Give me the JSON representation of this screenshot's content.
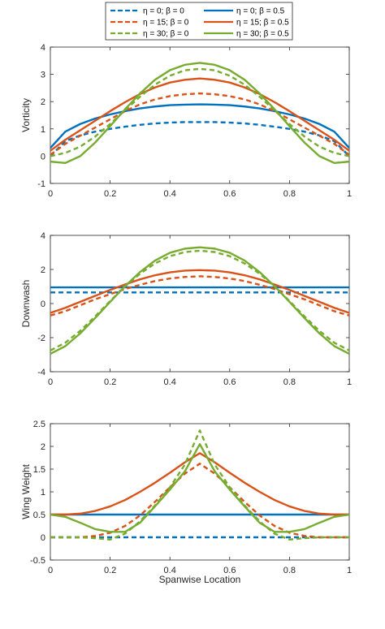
{
  "legend": {
    "entries": [
      {
        "label": "η = 0; β = 0",
        "color": "#0072BD",
        "dash": true
      },
      {
        "label": "η = 0; β = 0.5",
        "color": "#0072BD",
        "dash": false
      },
      {
        "label": "η = 15; β = 0",
        "color": "#D95319",
        "dash": true
      },
      {
        "label": "η = 15; β = 0.5",
        "color": "#D95319",
        "dash": false
      },
      {
        "label": "η = 30; β = 0",
        "color": "#77AC30",
        "dash": true
      },
      {
        "label": "η = 30; β = 0.5",
        "color": "#77AC30",
        "dash": false
      }
    ]
  },
  "chart_data": [
    {
      "type": "line",
      "title": "",
      "xlabel": "",
      "ylabel": "Vorticity",
      "xlim": [
        0,
        1
      ],
      "ylim": [
        -1,
        4
      ],
      "xticks": [
        "0",
        "0.2",
        "0.4",
        "0.6",
        "0.8",
        "1"
      ],
      "yticks": [
        "-1",
        "0",
        "1",
        "2",
        "3",
        "4"
      ],
      "x": [
        0,
        0.05,
        0.1,
        0.15,
        0.2,
        0.25,
        0.3,
        0.35,
        0.4,
        0.45,
        0.5,
        0.55,
        0.6,
        0.65,
        0.7,
        0.75,
        0.8,
        0.85,
        0.9,
        0.95,
        1
      ],
      "series": [
        {
          "name": "η = 0; β = 0",
          "color": "#0072BD",
          "dash": true,
          "values": [
            0.0,
            0.55,
            0.76,
            0.9,
            1.0,
            1.08,
            1.15,
            1.2,
            1.23,
            1.25,
            1.25,
            1.25,
            1.23,
            1.2,
            1.15,
            1.08,
            1.0,
            0.9,
            0.76,
            0.55,
            0.0
          ]
        },
        {
          "name": "η = 0; β = 0.5",
          "color": "#0072BD",
          "dash": false,
          "values": [
            0.3,
            0.9,
            1.18,
            1.38,
            1.53,
            1.65,
            1.75,
            1.82,
            1.87,
            1.89,
            1.9,
            1.89,
            1.87,
            1.82,
            1.75,
            1.65,
            1.53,
            1.38,
            1.18,
            0.9,
            0.3
          ]
        },
        {
          "name": "η = 15; β = 0",
          "color": "#D95319",
          "dash": true,
          "values": [
            0.05,
            0.45,
            0.75,
            1.05,
            1.35,
            1.65,
            1.9,
            2.08,
            2.2,
            2.27,
            2.3,
            2.27,
            2.2,
            2.08,
            1.9,
            1.65,
            1.35,
            1.05,
            0.75,
            0.45,
            0.05
          ]
        },
        {
          "name": "η = 15; β = 0.5",
          "color": "#D95319",
          "dash": false,
          "values": [
            0.2,
            0.6,
            0.95,
            1.3,
            1.65,
            1.98,
            2.28,
            2.52,
            2.7,
            2.8,
            2.85,
            2.8,
            2.7,
            2.52,
            2.28,
            1.98,
            1.65,
            1.3,
            0.95,
            0.6,
            0.2
          ]
        },
        {
          "name": "η = 30; β = 0",
          "color": "#77AC30",
          "dash": true,
          "values": [
            0.0,
            0.12,
            0.35,
            0.72,
            1.18,
            1.68,
            2.18,
            2.62,
            2.95,
            3.15,
            3.2,
            3.15,
            2.95,
            2.62,
            2.18,
            1.68,
            1.18,
            0.72,
            0.35,
            0.12,
            0.0
          ]
        },
        {
          "name": "η = 30; β = 0.5",
          "color": "#77AC30",
          "dash": false,
          "values": [
            -0.2,
            -0.25,
            0.0,
            0.5,
            1.1,
            1.72,
            2.3,
            2.8,
            3.15,
            3.35,
            3.42,
            3.35,
            3.15,
            2.8,
            2.3,
            1.72,
            1.1,
            0.5,
            0.0,
            -0.25,
            -0.2
          ]
        }
      ]
    },
    {
      "type": "line",
      "title": "",
      "xlabel": "",
      "ylabel": "Downwash",
      "xlim": [
        0,
        1
      ],
      "ylim": [
        -4,
        4
      ],
      "xticks": [
        "0",
        "0.2",
        "0.4",
        "0.6",
        "0.8",
        "1"
      ],
      "yticks": [
        "-4",
        "-2",
        "0",
        "2",
        "4"
      ],
      "x": [
        0,
        0.05,
        0.1,
        0.15,
        0.2,
        0.25,
        0.3,
        0.35,
        0.4,
        0.45,
        0.5,
        0.55,
        0.6,
        0.65,
        0.7,
        0.75,
        0.8,
        0.85,
        0.9,
        0.95,
        1
      ],
      "series": [
        {
          "name": "η = 0; β = 0",
          "color": "#0072BD",
          "dash": true,
          "values": [
            0.65,
            0.65,
            0.65,
            0.65,
            0.65,
            0.65,
            0.65,
            0.65,
            0.65,
            0.65,
            0.65,
            0.65,
            0.65,
            0.65,
            0.65,
            0.65,
            0.65,
            0.65,
            0.65,
            0.65,
            0.65
          ]
        },
        {
          "name": "η = 0; β = 0.5",
          "color": "#0072BD",
          "dash": false,
          "values": [
            0.95,
            0.95,
            0.95,
            0.95,
            0.95,
            0.95,
            0.95,
            0.95,
            0.95,
            0.95,
            0.95,
            0.95,
            0.95,
            0.95,
            0.95,
            0.95,
            0.95,
            0.95,
            0.95,
            0.95,
            0.95
          ]
        },
        {
          "name": "η = 15; β = 0",
          "color": "#D95319",
          "dash": true,
          "values": [
            -0.7,
            -0.45,
            -0.1,
            0.25,
            0.55,
            0.85,
            1.1,
            1.32,
            1.47,
            1.56,
            1.6,
            1.56,
            1.47,
            1.32,
            1.1,
            0.85,
            0.55,
            0.25,
            -0.1,
            -0.45,
            -0.7
          ]
        },
        {
          "name": "η = 15; β = 0.5",
          "color": "#D95319",
          "dash": false,
          "values": [
            -0.55,
            -0.25,
            0.1,
            0.45,
            0.8,
            1.12,
            1.42,
            1.66,
            1.83,
            1.93,
            1.96,
            1.93,
            1.83,
            1.66,
            1.42,
            1.12,
            0.8,
            0.45,
            0.1,
            -0.25,
            -0.55
          ]
        },
        {
          "name": "η = 30; β = 0",
          "color": "#77AC30",
          "dash": true,
          "values": [
            -2.75,
            -2.3,
            -1.6,
            -0.75,
            0.15,
            1.0,
            1.75,
            2.35,
            2.78,
            3.02,
            3.1,
            3.02,
            2.78,
            2.35,
            1.75,
            1.0,
            0.15,
            -0.75,
            -1.6,
            -2.3,
            -2.75
          ]
        },
        {
          "name": "η = 30; β = 0.5",
          "color": "#77AC30",
          "dash": false,
          "values": [
            -2.95,
            -2.5,
            -1.75,
            -0.85,
            0.1,
            1.02,
            1.85,
            2.52,
            2.98,
            3.22,
            3.3,
            3.22,
            2.98,
            2.52,
            1.85,
            1.02,
            0.1,
            -0.85,
            -1.75,
            -2.5,
            -2.95
          ]
        }
      ]
    },
    {
      "type": "line",
      "title": "",
      "xlabel": "Spanwise Location",
      "ylabel": "Wing Weight",
      "xlim": [
        0,
        1
      ],
      "ylim": [
        -0.5,
        2.5
      ],
      "xticks": [
        "0",
        "0.2",
        "0.4",
        "0.6",
        "0.8",
        "1"
      ],
      "yticks": [
        "-0.5",
        "0",
        "0.5",
        "1",
        "1.5",
        "2",
        "2.5"
      ],
      "x": [
        0,
        0.05,
        0.1,
        0.15,
        0.2,
        0.25,
        0.3,
        0.35,
        0.4,
        0.45,
        0.5,
        0.55,
        0.6,
        0.65,
        0.7,
        0.75,
        0.8,
        0.85,
        0.9,
        0.95,
        1
      ],
      "series": [
        {
          "name": "η = 0; β = 0",
          "color": "#0072BD",
          "dash": true,
          "values": [
            0,
            0,
            0,
            0,
            0,
            0,
            0,
            0,
            0,
            0,
            0,
            0,
            0,
            0,
            0,
            0,
            0,
            0,
            0,
            0,
            0
          ]
        },
        {
          "name": "η = 0; β = 0.5",
          "color": "#0072BD",
          "dash": false,
          "values": [
            0.5,
            0.5,
            0.5,
            0.5,
            0.5,
            0.5,
            0.5,
            0.5,
            0.5,
            0.5,
            0.5,
            0.5,
            0.5,
            0.5,
            0.5,
            0.5,
            0.5,
            0.5,
            0.5,
            0.5,
            0.5
          ]
        },
        {
          "name": "η = 15; β = 0",
          "color": "#D95319",
          "dash": true,
          "values": [
            0.0,
            0.0,
            0.0,
            0.03,
            0.1,
            0.25,
            0.48,
            0.78,
            1.1,
            1.4,
            1.62,
            1.4,
            1.1,
            0.78,
            0.48,
            0.25,
            0.1,
            0.03,
            0.0,
            0.0,
            0.0
          ]
        },
        {
          "name": "η = 15; β = 0.5",
          "color": "#D95319",
          "dash": false,
          "values": [
            0.5,
            0.5,
            0.52,
            0.58,
            0.68,
            0.82,
            1.0,
            1.2,
            1.42,
            1.65,
            1.85,
            1.65,
            1.42,
            1.2,
            1.0,
            0.82,
            0.68,
            0.58,
            0.52,
            0.5,
            0.5
          ]
        },
        {
          "name": "η = 30; β = 0",
          "color": "#77AC30",
          "dash": true,
          "values": [
            0.0,
            0.0,
            0.0,
            -0.02,
            -0.05,
            0.08,
            0.35,
            0.7,
            1.1,
            1.6,
            2.35,
            1.6,
            1.1,
            0.7,
            0.35,
            0.08,
            -0.05,
            -0.02,
            0.0,
            0.0,
            0.0
          ]
        },
        {
          "name": "η = 30; β = 0.5",
          "color": "#77AC30",
          "dash": false,
          "values": [
            0.5,
            0.45,
            0.32,
            0.18,
            0.12,
            0.12,
            0.32,
            0.68,
            1.05,
            1.45,
            2.05,
            1.45,
            1.05,
            0.68,
            0.32,
            0.12,
            0.12,
            0.18,
            0.32,
            0.45,
            0.5
          ]
        }
      ]
    }
  ]
}
